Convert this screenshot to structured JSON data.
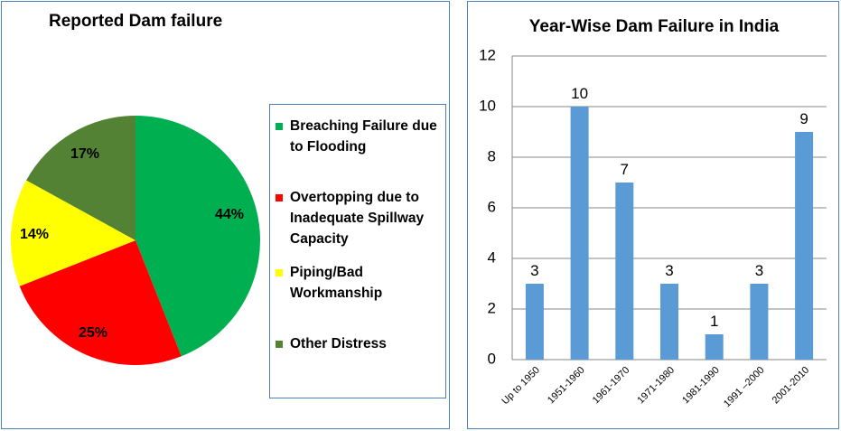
{
  "chart_data": [
    {
      "type": "pie",
      "title": "Reported Dam failure",
      "slices": [
        {
          "label": "Breaching Failure due to Flooding",
          "value": 44,
          "display": "44%",
          "color": "#00b050"
        },
        {
          "label": "Overtopping due to Inadequate Spillway Capacity",
          "value": 25,
          "display": "25%",
          "color": "#ff0000"
        },
        {
          "label": "Piping/Bad Workmanship",
          "value": 14,
          "display": "14%",
          "color": "#ffff00"
        },
        {
          "label": "Other Distress",
          "value": 17,
          "display": "17%",
          "color": "#548235"
        }
      ],
      "legend": {
        "position": "right",
        "items": [
          {
            "label": "Breaching Failure due to Flooding",
            "color": "#00b050"
          },
          {
            "label": "Overtopping due to Inadequate Spillway Capacity",
            "color": "#ff0000"
          },
          {
            "label": "Piping/Bad Workmanship",
            "color": "#ffff00"
          },
          {
            "label": "Other Distress",
            "color": "#548235"
          }
        ]
      }
    },
    {
      "type": "bar",
      "title": "Year-Wise Dam Failure in India",
      "categories": [
        "Up to 1950",
        "1951-1960",
        "1961-1970",
        "1971-1980",
        "1981-1990",
        "1991 –2000",
        "2001-2010"
      ],
      "values": [
        3,
        10,
        7,
        3,
        1,
        3,
        9
      ],
      "data_labels": [
        "3",
        "10",
        "7",
        "3",
        "1",
        "3",
        "9"
      ],
      "xlabel": "",
      "ylabel": "",
      "ylim": [
        0,
        12
      ],
      "yticks": [
        0,
        2,
        4,
        6,
        8,
        10,
        12
      ],
      "ytick_labels": [
        "0",
        "2",
        "4",
        "6",
        "8",
        "10",
        "12"
      ],
      "grid": true,
      "bar_color": "#5b9bd5",
      "grid_color": "#868686"
    }
  ]
}
